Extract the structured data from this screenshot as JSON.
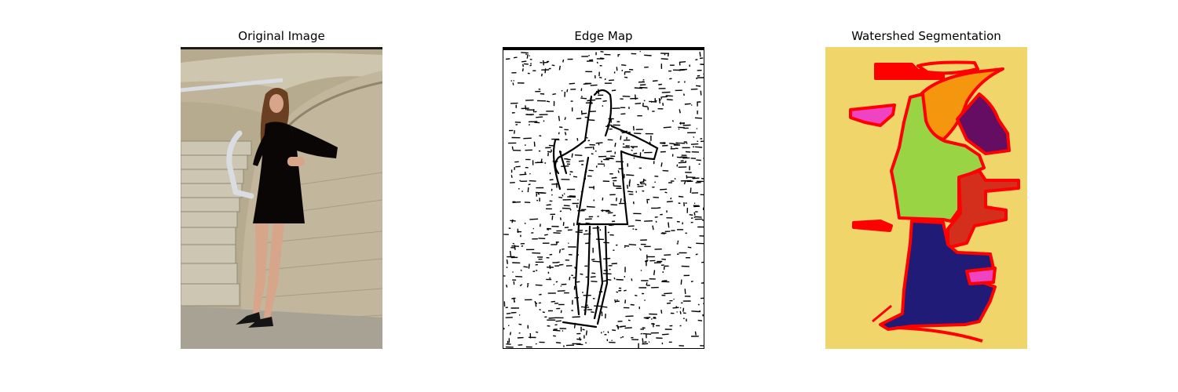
{
  "figure": {
    "panels": [
      {
        "title": "Original Image"
      },
      {
        "title": "Edge Map"
      },
      {
        "title": "Watershed Segmentation"
      }
    ]
  },
  "colors": {
    "background": "#ffffff",
    "wall_stone": "#b7ab8f",
    "steps": "#c8c2b0",
    "ground": "#a8a294",
    "dress": "#0b0606",
    "skin": "#d6a58a",
    "hair": "#6b3f22",
    "railing": "#d9dde1",
    "edge_stroke": "#000000",
    "segment_background": "#f0d56a",
    "segment_boundary": "#ff0000",
    "segment_orange": "#f5960f",
    "segment_purple": "#650c63",
    "segment_green": "#99d445",
    "segment_rust": "#d32f1c",
    "segment_navy": "#211b78",
    "segment_magenta": "#ee44c4"
  }
}
